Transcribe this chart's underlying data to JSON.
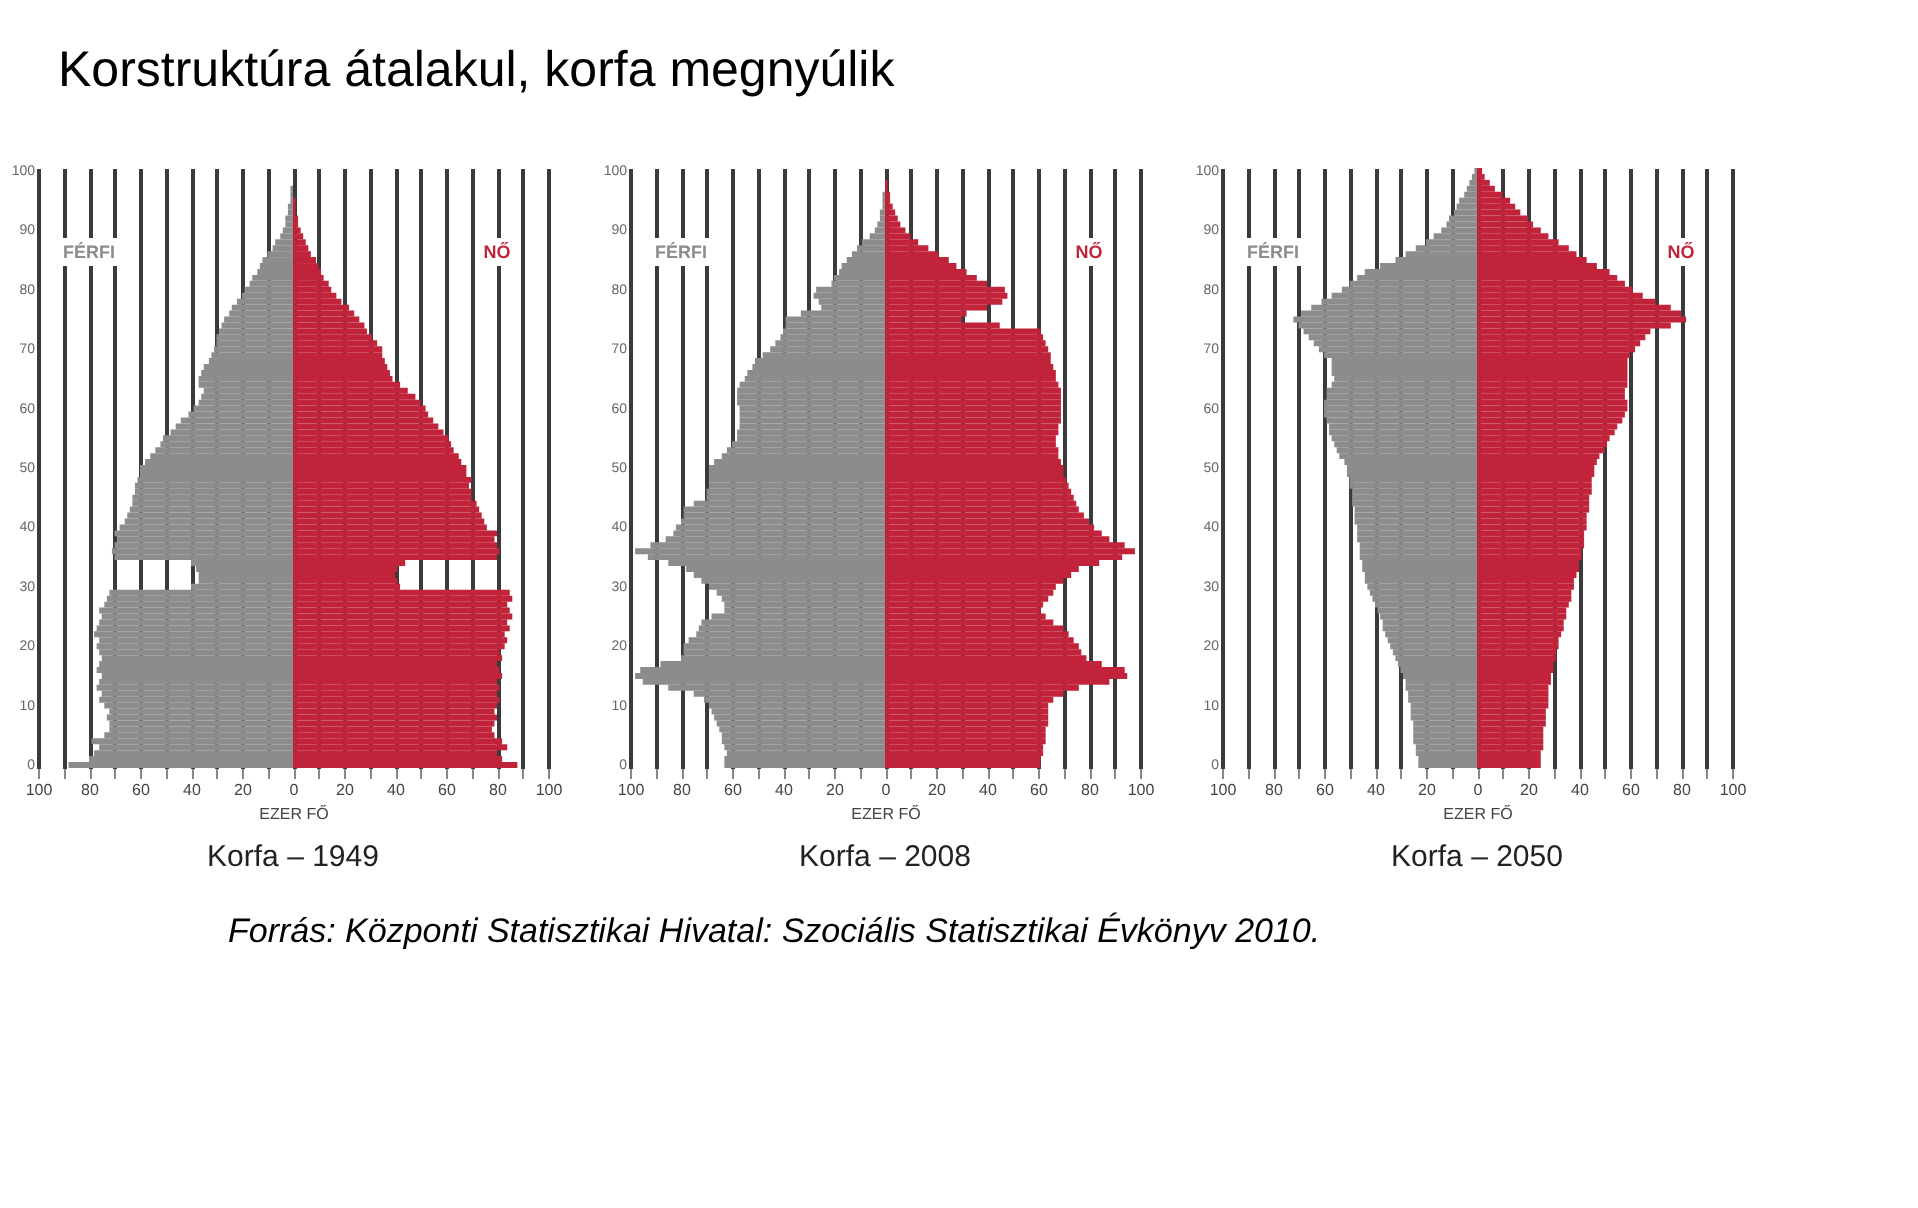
{
  "chart_data": [
    {
      "type": "other",
      "title": "Korstruktúra átalakul, korfa megnyúlik",
      "annotations": [
        "Forrás:  Központi  Statisztikai  Hivatal:  Szociális  Statisztikai  Évkönyv 2010."
      ]
    },
    {
      "type": "bar",
      "orientation": "horizontal",
      "stacked": true,
      "title": "Korfa – 1949",
      "xlabel": "EZER FŐ",
      "grid": "x",
      "xlim": [
        -100,
        100
      ],
      "xticks": [
        {
          "value": -100,
          "label": "100"
        },
        {
          "value": -90,
          "label": null
        },
        {
          "value": -80,
          "label": "80"
        },
        {
          "value": -70,
          "label": null
        },
        {
          "value": -60,
          "label": "60"
        },
        {
          "value": -50,
          "label": null
        },
        {
          "value": -40,
          "label": "40"
        },
        {
          "value": -30,
          "label": null
        },
        {
          "value": -20,
          "label": "20"
        },
        {
          "value": -10,
          "label": null
        },
        0,
        {
          "value": 10,
          "label": null
        },
        20,
        {
          "value": 30,
          "label": null
        },
        40,
        {
          "value": 50,
          "label": null
        },
        60,
        {
          "value": 70,
          "label": null
        },
        80,
        {
          "value": 90,
          "label": null
        },
        100
      ],
      "categories": [
        "100",
        null,
        null,
        null,
        null,
        null,
        null,
        null,
        null,
        null,
        "90",
        null,
        null,
        null,
        null,
        null,
        null,
        null,
        null,
        null,
        "80",
        null,
        null,
        null,
        null,
        null,
        null,
        null,
        null,
        null,
        "70",
        null,
        null,
        null,
        null,
        null,
        null,
        null,
        null,
        null,
        "60",
        null,
        null,
        null,
        null,
        null,
        null,
        null,
        null,
        null,
        "50",
        null,
        null,
        null,
        null,
        null,
        null,
        null,
        null,
        null,
        "40",
        null,
        null,
        null,
        null,
        null,
        null,
        null,
        null,
        null,
        "30",
        null,
        null,
        null,
        null,
        null,
        null,
        null,
        null,
        null,
        "20",
        null,
        null,
        null,
        null,
        null,
        null,
        null,
        null,
        null,
        "10",
        null,
        null,
        null,
        null,
        null,
        null,
        null,
        null,
        null,
        "0"
      ],
      "series": [
        {
          "name": "FÉRFI",
          "color": "#8c8c8c",
          "values": [
            null,
            null,
            null,
            -1,
            -1,
            -1,
            -2,
            -2,
            -3,
            -3,
            -4,
            -5,
            -7,
            -8,
            -10,
            -12,
            -13,
            -14,
            -16,
            -17,
            -19,
            -20,
            -22,
            -24,
            -25,
            -27,
            -28,
            -29,
            -30,
            -30,
            -31,
            -32,
            -33,
            -35,
            -36,
            -37,
            -37,
            -35,
            -36,
            -37,
            -39,
            -41,
            -44,
            -46,
            -48,
            -51,
            -52,
            -54,
            -56,
            -58,
            -60,
            -60,
            -61,
            -62,
            -62,
            -63,
            -63,
            -64,
            -65,
            -66,
            -68,
            -70,
            -69,
            -70,
            -71,
            -70,
            -40,
            -38,
            -37,
            -37,
            -40,
            -72,
            -73,
            -74,
            -76,
            -75,
            -76,
            -77,
            -78,
            -76,
            -77,
            -76,
            -75,
            -76,
            -77,
            -75,
            -76,
            -77,
            -75,
            -76,
            -74,
            -72,
            -73,
            -72,
            -72,
            -74,
            -79,
            -76,
            -78,
            -80,
            -88
          ]
        },
        {
          "name": "NŐ",
          "color": "#c0233a",
          "values": [
            null,
            null,
            null,
            null,
            null,
            1,
            1,
            1,
            2,
            2,
            3,
            4,
            5,
            6,
            7,
            9,
            10,
            11,
            12,
            14,
            15,
            17,
            19,
            22,
            24,
            26,
            28,
            29,
            31,
            33,
            35,
            35,
            36,
            37,
            38,
            39,
            42,
            45,
            48,
            50,
            52,
            53,
            55,
            57,
            59,
            61,
            62,
            63,
            65,
            66,
            68,
            68,
            70,
            69,
            70,
            70,
            72,
            73,
            74,
            75,
            76,
            80,
            79,
            80,
            81,
            80,
            44,
            41,
            40,
            41,
            42,
            85,
            86,
            84,
            85,
            86,
            84,
            85,
            83,
            84,
            83,
            81,
            82,
            80,
            81,
            82,
            80,
            81,
            80,
            81,
            80,
            79,
            80,
            79,
            78,
            79,
            82,
            84,
            80,
            82,
            88
          ]
        }
      ]
    },
    {
      "type": "bar",
      "orientation": "horizontal",
      "stacked": true,
      "title": "Korfa – 2008",
      "xlabel": "EZER FŐ",
      "grid": "x",
      "xlim": [
        -100,
        100
      ],
      "xticks": [
        {
          "value": -100,
          "label": "100"
        },
        {
          "value": -90,
          "label": null
        },
        {
          "value": -80,
          "label": "80"
        },
        {
          "value": -70,
          "label": null
        },
        {
          "value": -60,
          "label": "60"
        },
        {
          "value": -50,
          "label": null
        },
        {
          "value": -40,
          "label": "40"
        },
        {
          "value": -30,
          "label": null
        },
        {
          "value": -20,
          "label": "20"
        },
        {
          "value": -10,
          "label": null
        },
        0,
        {
          "value": 10,
          "label": null
        },
        20,
        {
          "value": 30,
          "label": null
        },
        40,
        {
          "value": 50,
          "label": null
        },
        60,
        {
          "value": 70,
          "label": null
        },
        80,
        {
          "value": 90,
          "label": null
        },
        100
      ],
      "categories": [
        "100",
        null,
        null,
        null,
        null,
        null,
        null,
        null,
        null,
        null,
        "90",
        null,
        null,
        null,
        null,
        null,
        null,
        null,
        null,
        null,
        "80",
        null,
        null,
        null,
        null,
        null,
        null,
        null,
        null,
        null,
        "70",
        null,
        null,
        null,
        null,
        null,
        null,
        null,
        null,
        null,
        "60",
        null,
        null,
        null,
        null,
        null,
        null,
        null,
        null,
        null,
        "50",
        null,
        null,
        null,
        null,
        null,
        null,
        null,
        null,
        null,
        "40",
        null,
        null,
        null,
        null,
        null,
        null,
        null,
        null,
        null,
        "30",
        null,
        null,
        null,
        null,
        null,
        null,
        null,
        null,
        null,
        "20",
        null,
        null,
        null,
        null,
        null,
        null,
        null,
        null,
        null,
        "10",
        null,
        null,
        null,
        null,
        null,
        null,
        null,
        null,
        null,
        "0"
      ],
      "series": [
        {
          "name": "FÉRFI",
          "color": "#8c8c8c",
          "values": [
            null,
            null,
            null,
            null,
            -1,
            -1,
            -1,
            -2,
            -2,
            -3,
            -4,
            -6,
            -9,
            -11,
            -13,
            -15,
            -17,
            -18,
            -20,
            -21,
            -27,
            -28,
            -26,
            -25,
            -33,
            -39,
            -39,
            -40,
            -41,
            -43,
            -45,
            -48,
            -51,
            -52,
            -54,
            -55,
            -57,
            -58,
            -58,
            -58,
            -57,
            -57,
            -57,
            -57,
            -58,
            -58,
            -60,
            -62,
            -64,
            -67,
            -69,
            -69,
            -69,
            -69,
            -70,
            -70,
            -75,
            -79,
            -79,
            -80,
            -82,
            -83,
            -86,
            -92,
            -98,
            -93,
            -85,
            -78,
            -75,
            -72,
            -69,
            -66,
            -64,
            -63,
            -63,
            -68,
            -72,
            -73,
            -74,
            -77,
            -79,
            -79,
            -80,
            -88,
            -96,
            -98,
            -95,
            -85,
            -75,
            -71,
            -69,
            -68,
            -67,
            -66,
            -65,
            -64,
            -64,
            -63,
            -62,
            -63,
            -63
          ]
        },
        {
          "name": "NŐ",
          "color": "#c0233a",
          "values": [
            null,
            null,
            1,
            1,
            2,
            2,
            3,
            4,
            5,
            6,
            8,
            10,
            13,
            17,
            21,
            25,
            28,
            32,
            36,
            40,
            47,
            48,
            46,
            40,
            32,
            30,
            45,
            61,
            62,
            63,
            64,
            65,
            65,
            66,
            67,
            67,
            68,
            69,
            69,
            69,
            69,
            69,
            69,
            68,
            68,
            67,
            67,
            68,
            68,
            69,
            70,
            70,
            71,
            72,
            73,
            74,
            75,
            76,
            78,
            80,
            82,
            85,
            88,
            94,
            98,
            93,
            84,
            76,
            73,
            70,
            67,
            66,
            64,
            62,
            61,
            63,
            66,
            70,
            72,
            74,
            76,
            77,
            79,
            85,
            94,
            95,
            88,
            76,
            70,
            66,
            64,
            64,
            64,
            64,
            63,
            63,
            63,
            62,
            62,
            61,
            61
          ]
        }
      ]
    },
    {
      "type": "bar",
      "orientation": "horizontal",
      "stacked": true,
      "title": "Korfa – 2050",
      "xlabel": "EZER FŐ",
      "grid": "x",
      "xlim": [
        -100,
        100
      ],
      "xticks": [
        {
          "value": -100,
          "label": "100"
        },
        {
          "value": -90,
          "label": null
        },
        {
          "value": -80,
          "label": "80"
        },
        {
          "value": -70,
          "label": null
        },
        {
          "value": -60,
          "label": "60"
        },
        {
          "value": -50,
          "label": null
        },
        {
          "value": -40,
          "label": "40"
        },
        {
          "value": -30,
          "label": null
        },
        {
          "value": -20,
          "label": "20"
        },
        {
          "value": -10,
          "label": null
        },
        0,
        {
          "value": 10,
          "label": null
        },
        20,
        {
          "value": 30,
          "label": null
        },
        40,
        {
          "value": 50,
          "label": null
        },
        60,
        {
          "value": 70,
          "label": null
        },
        80,
        {
          "value": 90,
          "label": null
        },
        100
      ],
      "categories": [
        "100",
        null,
        null,
        null,
        null,
        null,
        null,
        null,
        null,
        null,
        "90",
        null,
        null,
        null,
        null,
        null,
        null,
        null,
        null,
        null,
        "80",
        null,
        null,
        null,
        null,
        null,
        null,
        null,
        null,
        null,
        "70",
        null,
        null,
        null,
        null,
        null,
        null,
        null,
        null,
        null,
        "60",
        null,
        null,
        null,
        null,
        null,
        null,
        null,
        null,
        null,
        "50",
        null,
        null,
        null,
        null,
        null,
        null,
        null,
        null,
        null,
        "40",
        null,
        null,
        null,
        null,
        null,
        null,
        null,
        null,
        null,
        "30",
        null,
        null,
        null,
        null,
        null,
        null,
        null,
        null,
        null,
        "20",
        null,
        null,
        null,
        null,
        null,
        null,
        null,
        null,
        null,
        "10",
        null,
        null,
        null,
        null,
        null,
        null,
        null,
        null,
        null,
        "0"
      ],
      "series": [
        {
          "name": "FÉRFI",
          "color": "#8c8c8c",
          "values": [
            -1,
            -2,
            -3,
            -4,
            -5,
            -7,
            -8,
            -9,
            -11,
            -12,
            -14,
            -17,
            -20,
            -24,
            -28,
            -32,
            -38,
            -44,
            -47,
            -50,
            -53,
            -57,
            -61,
            -65,
            -69,
            -72,
            -70,
            -68,
            -66,
            -64,
            -62,
            -60,
            -57,
            -57,
            -57,
            -56,
            -57,
            -59,
            -59,
            -60,
            -60,
            -60,
            -59,
            -58,
            -58,
            -57,
            -56,
            -55,
            -54,
            -52,
            -51,
            -51,
            -50,
            -50,
            -49,
            -49,
            -49,
            -48,
            -48,
            -48,
            -47,
            -47,
            -47,
            -46,
            -46,
            -46,
            -45,
            -45,
            -44,
            -44,
            -43,
            -42,
            -41,
            -40,
            -39,
            -38,
            -37,
            -37,
            -36,
            -35,
            -34,
            -33,
            -32,
            -31,
            -30,
            -29,
            -28,
            -28,
            -27,
            -27,
            -26,
            -26,
            -26,
            -25,
            -25,
            -25,
            -25,
            -24,
            -24,
            -23,
            -23
          ]
        },
        {
          "name": "NŐ",
          "color": "#c0233a",
          "values": [
            2,
            3,
            5,
            7,
            10,
            13,
            15,
            17,
            20,
            22,
            25,
            28,
            32,
            36,
            39,
            43,
            47,
            52,
            55,
            58,
            61,
            65,
            70,
            76,
            80,
            82,
            76,
            68,
            66,
            64,
            62,
            60,
            59,
            59,
            59,
            59,
            59,
            58,
            58,
            59,
            59,
            58,
            57,
            55,
            54,
            52,
            51,
            50,
            48,
            47,
            46,
            46,
            45,
            45,
            45,
            44,
            44,
            44,
            43,
            43,
            43,
            42,
            42,
            42,
            41,
            41,
            40,
            40,
            39,
            38,
            38,
            37,
            37,
            36,
            35,
            35,
            34,
            34,
            33,
            32,
            32,
            31,
            31,
            30,
            30,
            29,
            29,
            28,
            28,
            28,
            28,
            27,
            27,
            27,
            26,
            26,
            26,
            26,
            25,
            25,
            25
          ]
        }
      ]
    }
  ]
}
